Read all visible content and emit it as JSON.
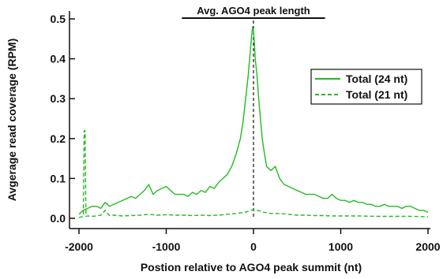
{
  "chart_data": {
    "type": "line",
    "title": "",
    "xlabel": "Postion relative to AGO4 peak summit (nt)",
    "ylabel": "Avgerage read coverage (RPM)",
    "xlim": [
      -2000,
      2000
    ],
    "ylim": [
      0,
      0.5
    ],
    "xticks": [
      -2000,
      -1000,
      0,
      1000,
      2000
    ],
    "xtick_labels": [
      "-2000",
      "-1000",
      "0",
      "1000",
      "2000"
    ],
    "yticks": [
      0.0,
      0.1,
      0.2,
      0.3,
      0.4,
      0.5
    ],
    "ytick_labels": [
      "0.0",
      "0.1",
      "0.2",
      "0.3",
      "0.4",
      "0.5"
    ],
    "grid": false,
    "legend_position": "top-right",
    "line_color": "#22bb22",
    "annotation": {
      "text": "Avg. AGO4 peak length",
      "x_start": -820,
      "x_end": 820
    },
    "summit_line_x": 0,
    "series": [
      {
        "name": "Total (24 nt)",
        "style": "solid",
        "x": [
          -2000,
          -1950,
          -1900,
          -1850,
          -1800,
          -1750,
          -1700,
          -1650,
          -1600,
          -1550,
          -1500,
          -1450,
          -1400,
          -1350,
          -1300,
          -1250,
          -1200,
          -1150,
          -1100,
          -1050,
          -1000,
          -950,
          -900,
          -850,
          -800,
          -750,
          -700,
          -650,
          -600,
          -550,
          -500,
          -450,
          -400,
          -350,
          -300,
          -250,
          -200,
          -150,
          -120,
          -100,
          -80,
          -60,
          -40,
          -20,
          -10,
          0,
          10,
          20,
          40,
          60,
          80,
          100,
          120,
          150,
          200,
          250,
          300,
          350,
          400,
          450,
          500,
          550,
          600,
          650,
          700,
          750,
          800,
          850,
          900,
          950,
          1000,
          1050,
          1100,
          1150,
          1200,
          1250,
          1300,
          1350,
          1400,
          1450,
          1500,
          1550,
          1600,
          1650,
          1700,
          1750,
          1800,
          1850,
          1900,
          1950,
          2000
        ],
        "y": [
          0.01,
          0.02,
          0.025,
          0.03,
          0.03,
          0.025,
          0.04,
          0.03,
          0.035,
          0.04,
          0.045,
          0.05,
          0.055,
          0.05,
          0.06,
          0.07,
          0.085,
          0.06,
          0.07,
          0.075,
          0.08,
          0.07,
          0.06,
          0.06,
          0.06,
          0.055,
          0.065,
          0.06,
          0.07,
          0.065,
          0.08,
          0.075,
          0.09,
          0.1,
          0.11,
          0.13,
          0.16,
          0.2,
          0.24,
          0.28,
          0.32,
          0.36,
          0.41,
          0.46,
          0.48,
          0.47,
          0.44,
          0.4,
          0.36,
          0.3,
          0.25,
          0.2,
          0.17,
          0.13,
          0.12,
          0.13,
          0.1,
          0.085,
          0.08,
          0.075,
          0.07,
          0.065,
          0.06,
          0.06,
          0.06,
          0.055,
          0.05,
          0.05,
          0.06,
          0.05,
          0.045,
          0.045,
          0.04,
          0.045,
          0.04,
          0.04,
          0.035,
          0.035,
          0.03,
          0.03,
          0.035,
          0.03,
          0.03,
          0.03,
          0.025,
          0.03,
          0.03,
          0.025,
          0.02,
          0.02,
          0.015
        ]
      },
      {
        "name": "Total (21 nt)",
        "style": "dashed",
        "x": [
          -2000,
          -1950,
          -1940,
          -1930,
          -1920,
          -1900,
          -1850,
          -1800,
          -1750,
          -1700,
          -1650,
          -1600,
          -1500,
          -1400,
          -1300,
          -1200,
          -1100,
          -1000,
          -900,
          -800,
          -700,
          -600,
          -500,
          -400,
          -300,
          -200,
          -100,
          -50,
          0,
          50,
          100,
          200,
          300,
          400,
          500,
          600,
          700,
          800,
          900,
          1000,
          1200,
          1400,
          1600,
          1800,
          2000
        ],
        "y": [
          0.002,
          0.005,
          0.22,
          0.22,
          0.005,
          0.006,
          0.005,
          0.006,
          0.008,
          0.02,
          0.007,
          0.008,
          0.006,
          0.007,
          0.008,
          0.01,
          0.008,
          0.009,
          0.008,
          0.008,
          0.007,
          0.008,
          0.007,
          0.008,
          0.01,
          0.012,
          0.015,
          0.018,
          0.022,
          0.02,
          0.016,
          0.012,
          0.012,
          0.01,
          0.008,
          0.008,
          0.007,
          0.007,
          0.006,
          0.006,
          0.006,
          0.005,
          0.005,
          0.005,
          0.004
        ]
      }
    ]
  }
}
